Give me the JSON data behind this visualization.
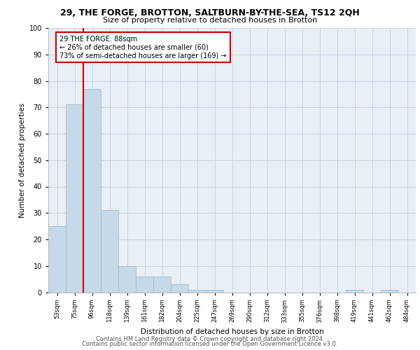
{
  "title1": "29, THE FORGE, BROTTON, SALTBURN-BY-THE-SEA, TS12 2QH",
  "title2": "Size of property relative to detached houses in Brotton",
  "xlabel": "Distribution of detached houses by size in Brotton",
  "ylabel": "Number of detached properties",
  "bar_labels": [
    "53sqm",
    "75sqm",
    "96sqm",
    "118sqm",
    "139sqm",
    "161sqm",
    "182sqm",
    "204sqm",
    "225sqm",
    "247sqm",
    "269sqm",
    "290sqm",
    "312sqm",
    "333sqm",
    "355sqm",
    "376sqm",
    "398sqm",
    "419sqm",
    "441sqm",
    "462sqm",
    "484sqm"
  ],
  "bar_values": [
    25,
    71,
    77,
    31,
    10,
    6,
    6,
    3,
    1,
    1,
    0,
    0,
    0,
    0,
    0,
    0,
    0,
    1,
    0,
    1,
    0
  ],
  "bar_color": "#c6d9e8",
  "bar_edge_color": "#9ab8cc",
  "grid_color": "#c8d4e4",
  "plot_bg_color": "#e8eff6",
  "red_line_color": "#cc0000",
  "annotation_line1": "29 THE FORGE: 88sqm",
  "annotation_line2": "← 26% of detached houses are smaller (60)",
  "annotation_line3": "73% of semi-detached houses are larger (169) →",
  "annotation_box_color": "#cc0000",
  "ylim": [
    0,
    100
  ],
  "yticks": [
    0,
    10,
    20,
    30,
    40,
    50,
    60,
    70,
    80,
    90,
    100
  ],
  "footer1": "Contains HM Land Registry data © Crown copyright and database right 2024.",
  "footer2": "Contains public sector information licensed under the Open Government Licence v3.0."
}
